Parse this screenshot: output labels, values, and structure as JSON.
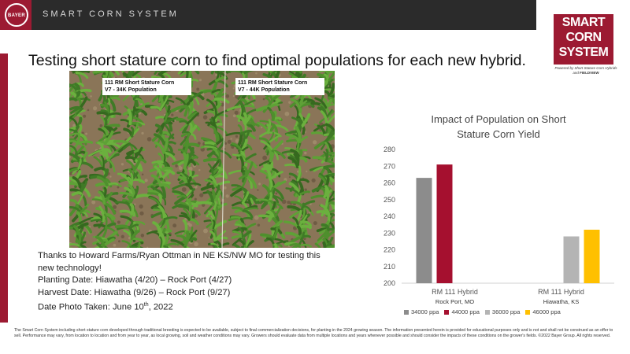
{
  "header": {
    "brand_logo_text": "BAYER",
    "title": "SMART CORN SYSTEM"
  },
  "brand": {
    "line1": "SMART",
    "line2": "CORN",
    "line3": "SYSTEM",
    "tagline_prefix": "Powered by Short Stature Corn Hybrids and ",
    "tagline_product": "FIELDVIEW"
  },
  "headline": "Testing short stature corn to find optimal populations for each new hybrid.",
  "photo": {
    "label_left": [
      "111 RM Short Stature Corn",
      "V7 - 34K Population"
    ],
    "label_right": [
      "111 RM Short Stature Corn",
      "V7 - 44K Population"
    ]
  },
  "caption": {
    "thanks": "Thanks to Howard Farms/Ryan Ottman in NE KS/NW MO for testing this new technology!",
    "planting": "Planting Date: Hiawatha (4/20) – Rock Port (4/27)",
    "harvest": "Harvest Date: Hiawatha (9/26) – Rock Port (9/27)",
    "photo_date_prefix": "Date Photo Taken: June 10",
    "photo_date_sup": "th",
    "photo_date_suffix": ", 2022"
  },
  "chart_data": {
    "type": "bar",
    "title": "Impact of Population on Short Stature Corn Yield",
    "title_lines": [
      "Impact of Population on Short",
      "Stature Corn Yield"
    ],
    "ylim": [
      200,
      280
    ],
    "yticks": [
      200,
      210,
      220,
      230,
      240,
      250,
      260,
      270,
      280
    ],
    "groups": [
      {
        "category": "RM 111 Hybrid",
        "sublabel": "Rock Port, MO"
      },
      {
        "category": "RM 111 Hybrid",
        "sublabel": "Hiawatha, KS"
      }
    ],
    "series": [
      {
        "name": "34000 ppa",
        "color": "#8c8c8c",
        "values": [
          263,
          null
        ]
      },
      {
        "name": "44000 ppa",
        "color": "#a5102f",
        "values": [
          271,
          null
        ]
      },
      {
        "name": "36000 ppa",
        "color": "#b4b4b4",
        "values": [
          null,
          228
        ]
      },
      {
        "name": "46000 ppa",
        "color": "#ffc000",
        "values": [
          null,
          232
        ]
      }
    ],
    "grid": false,
    "legend": "bottom"
  },
  "footer": "The Smart Corn System including short stature corn developed through traditional breeding is expected to be available, subject to final commercialization decisions, for planting in the 2024 growing season. The information presented herein is provided for educational purposes only and is not and shall not be construed as an offer to sell. Performance may vary, from location to location and from year to year, as local growing, soil and weather conditions may vary. Growers should evaluate data from multiple locations and years whenever possible and should consider the impacts of these conditions on the grower's fields. ©2022 Bayer Group. All rights reserved."
}
